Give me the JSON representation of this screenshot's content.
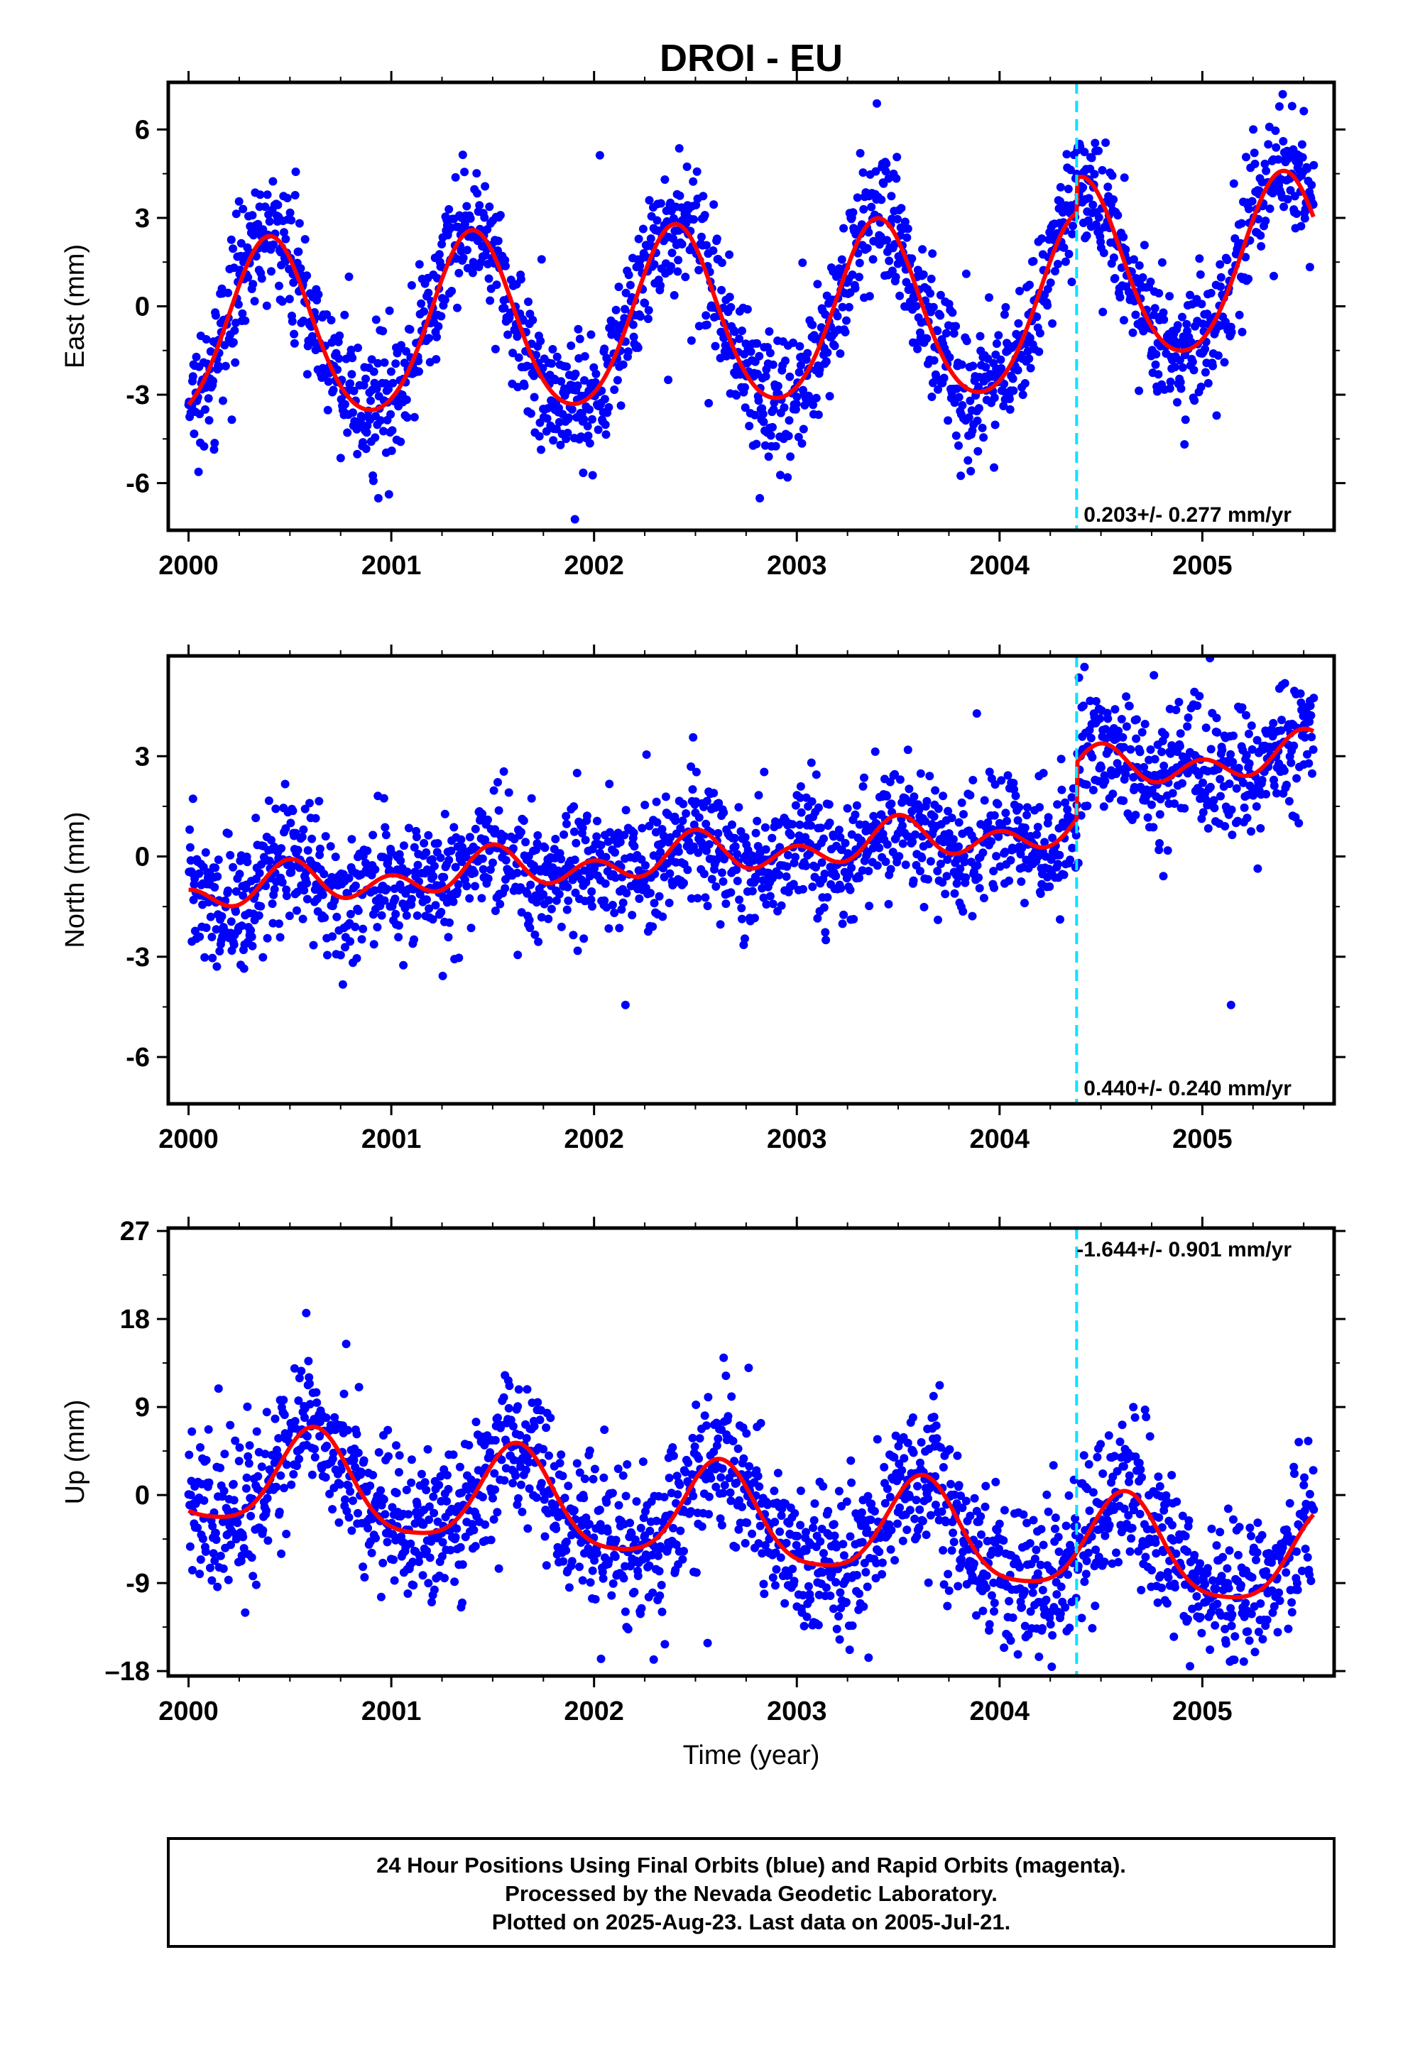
{
  "title": "DROI - EU",
  "footer": {
    "line1": "24 Hour Positions Using Final Orbits (blue) and Rapid Orbits (magenta).",
    "line2": "Processed by the Nevada Geodetic Laboratory.",
    "line3": "Plotted on 2025-Aug-23. Last data on 2005-Jul-21."
  },
  "xlabel": "Time (year)",
  "colors": {
    "data": "#0000ff",
    "model": "#ff0000",
    "break": "#00e5ff",
    "frame": "#000000"
  },
  "chart_data": [
    {
      "type": "scatter",
      "component": "east",
      "ylabel": "East (mm)",
      "xlim": [
        1999.9,
        2005.65
      ],
      "ylim": [
        -7.6,
        7.6
      ],
      "xticks": [
        2000,
        2001,
        2002,
        2003,
        2004,
        2005
      ],
      "xtick_labels": [
        "2000",
        "2001",
        "2002",
        "2003",
        "2004",
        "2005"
      ],
      "yticks": [
        -6,
        -3,
        0,
        3,
        6
      ],
      "ytick_labels": [
        "-6",
        "-3",
        "0",
        "3",
        "6"
      ],
      "rate_text": "0.203+/- 0.277 mm/yr",
      "rate_position": "bottom-right",
      "break_epoch": 2004.38,
      "model": {
        "rate": 0.203,
        "offset": -1.0,
        "annual_amp": 3.0,
        "annual_phase_peak": 2000.4,
        "semi_amp": 0.3,
        "jump": 1.2,
        "x_start": 2000.0,
        "x_end": 2005.55
      },
      "scatter_sigma": 1.1
    },
    {
      "type": "scatter",
      "component": "north",
      "ylabel": "North (mm)",
      "xlim": [
        1999.9,
        2005.65
      ],
      "ylim": [
        -7.4,
        6.0
      ],
      "xticks": [
        2000,
        2001,
        2002,
        2003,
        2004,
        2005
      ],
      "xtick_labels": [
        "2000",
        "2001",
        "2002",
        "2003",
        "2004",
        "2005"
      ],
      "yticks": [
        -6,
        -3,
        0,
        3
      ],
      "ytick_labels": [
        "-6",
        "-3",
        "0",
        "3"
      ],
      "rate_text": "0.440+/- 0.240 mm/yr",
      "rate_position": "bottom-right",
      "break_epoch": 2004.38,
      "model": {
        "rate": 0.44,
        "offset": -1.1,
        "annual_amp": 0.35,
        "annual_phase_peak": 2000.5,
        "semi_amp": 0.45,
        "jump": 1.7,
        "x_start": 2000.0,
        "x_end": 2005.55
      },
      "scatter_sigma": 0.95
    },
    {
      "type": "scatter",
      "component": "up",
      "ylabel": "Up (mm)",
      "xlim": [
        1999.9,
        2005.65
      ],
      "ylim": [
        -18.5,
        27.3
      ],
      "xticks": [
        2000,
        2001,
        2002,
        2003,
        2004,
        2005
      ],
      "xtick_labels": [
        "2000",
        "2001",
        "2002",
        "2003",
        "2004",
        "2005"
      ],
      "yticks": [
        -18,
        -9,
        0,
        9,
        18,
        27
      ],
      "ytick_labels": [
        "–18",
        "-9",
        "0",
        "9",
        "18",
        "27"
      ],
      "rate_text": "-1.644+/- 0.901 mm/yr",
      "rate_position": "top-right",
      "break_epoch": 2004.38,
      "model": {
        "rate": -1.644,
        "offset": 2.0,
        "annual_amp": 5.0,
        "annual_phase_peak": 2000.62,
        "semi_amp": 1.0,
        "jump": 0.0,
        "x_start": 2000.0,
        "x_end": 2005.55
      },
      "scatter_sigma": 3.8
    }
  ]
}
